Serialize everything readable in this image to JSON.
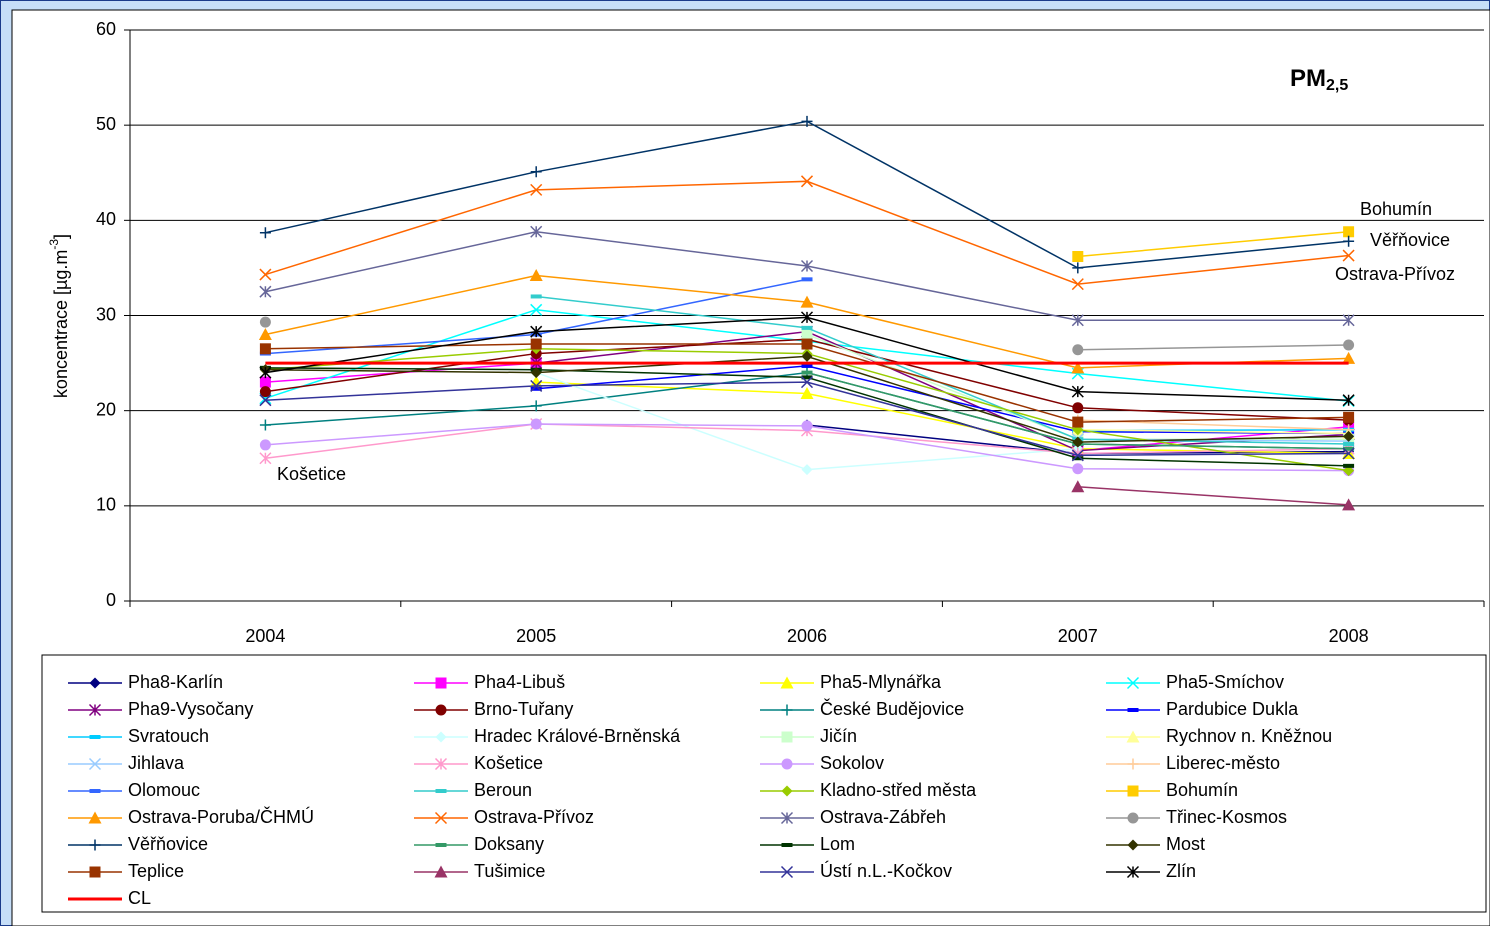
{
  "chart_data": {
    "type": "line",
    "title": {
      "main": "PM",
      "sub": "2,5"
    },
    "ylabel": [
      "koncentrace [µg.m",
      "-3",
      "]"
    ],
    "categories": [
      "2004",
      "2005",
      "2006",
      "2007",
      "2008"
    ],
    "ylim": [
      0,
      60
    ],
    "yticks": [
      0,
      10,
      20,
      30,
      40,
      50,
      60
    ],
    "grid": true,
    "annotations": [
      "Bohumín",
      "Věřňovice",
      "Ostrava-Přívoz",
      "Košetice"
    ],
    "series": [
      {
        "name": "Pha8-Karlín",
        "color": "#000080",
        "marker": "diamond",
        "values": [
          null,
          null,
          18.5,
          15.5,
          15.7
        ]
      },
      {
        "name": "Pha4-Libuš",
        "color": "#ff00ff",
        "marker": "square",
        "values": [
          23,
          25,
          null,
          15.8,
          18.3
        ]
      },
      {
        "name": "Pha5-Mlynářka",
        "color": "#ffff00",
        "marker": "triangle",
        "values": [
          null,
          23,
          21.8,
          16,
          15.5
        ]
      },
      {
        "name": "Pha5-Smíchov",
        "color": "#00ffff",
        "marker": "x",
        "values": [
          21.3,
          30.6,
          27.3,
          23.9,
          21
        ]
      },
      {
        "name": "Pha9-Vysočany",
        "color": "#800080",
        "marker": "star",
        "values": [
          null,
          25,
          28.3,
          15.8,
          17.5
        ]
      },
      {
        "name": "Brno-Tuřany",
        "color": "#800000",
        "marker": "circle",
        "values": [
          22,
          26,
          27.5,
          20.3,
          19
        ]
      },
      {
        "name": "České Budějovice",
        "color": "#008080",
        "marker": "plus",
        "values": [
          18.5,
          20.5,
          24,
          16.5,
          16
        ]
      },
      {
        "name": "Pardubice Dukla",
        "color": "#0000ff",
        "marker": "dash",
        "values": [
          null,
          22.3,
          24.7,
          17.8,
          17.6
        ]
      },
      {
        "name": "Svratouch",
        "color": "#00ccff",
        "marker": "dash",
        "values": [
          null,
          null,
          null,
          17.9,
          18
        ]
      },
      {
        "name": "Hradec Králové-Brněnská",
        "color": "#ccffff",
        "marker": "diamond",
        "values": [
          null,
          24,
          13.8,
          16,
          null
        ]
      },
      {
        "name": "Jičín",
        "color": "#ccffcc",
        "marker": "square",
        "values": [
          null,
          null,
          28,
          17,
          17
        ]
      },
      {
        "name": "Rychnov n. Kněžnou",
        "color": "#ffff99",
        "marker": "triangle",
        "values": [
          null,
          null,
          null,
          18,
          17.6
        ]
      },
      {
        "name": "Jihlava",
        "color": "#99ccff",
        "marker": "x",
        "values": [
          null,
          null,
          null,
          17,
          16.8
        ]
      },
      {
        "name": "Košetice",
        "color": "#ff99cc",
        "marker": "star",
        "values": [
          15,
          18.6,
          17.9,
          15.5,
          16
        ]
      },
      {
        "name": "Sokolov",
        "color": "#cc99ff",
        "marker": "circle",
        "values": [
          16.4,
          18.6,
          18.4,
          13.9,
          13.7
        ]
      },
      {
        "name": "Liberec-město",
        "color": "#ffcc99",
        "marker": "plus",
        "values": [
          null,
          null,
          null,
          19,
          18
        ]
      },
      {
        "name": "Olomouc",
        "color": "#3366ff",
        "marker": "dash",
        "values": [
          26,
          28,
          33.8,
          null,
          null
        ]
      },
      {
        "name": "Beroun",
        "color": "#33cccc",
        "marker": "dash",
        "values": [
          null,
          32,
          28.7,
          17,
          16.5
        ]
      },
      {
        "name": "Kladno-střed města",
        "color": "#99cc00",
        "marker": "diamond",
        "values": [
          24.3,
          26.5,
          26,
          18,
          13.7
        ]
      },
      {
        "name": "Bohumín",
        "color": "#ffcc00",
        "marker": "square",
        "values": [
          null,
          null,
          null,
          36.2,
          38.8
        ]
      },
      {
        "name": "Ostrava-Poruba/ČHMÚ",
        "color": "#ff9900",
        "marker": "triangle",
        "values": [
          28,
          34.2,
          31.4,
          24.5,
          25.5
        ]
      },
      {
        "name": "Ostrava-Přívoz",
        "color": "#ff6600",
        "marker": "x",
        "values": [
          34.3,
          43.2,
          44.1,
          33.3,
          36.3
        ]
      },
      {
        "name": "Ostrava-Zábřeh",
        "color": "#666699",
        "marker": "star",
        "values": [
          32.5,
          38.8,
          35.2,
          29.5,
          29.5
        ]
      },
      {
        "name": "Třinec-Kosmos",
        "color": "#969696",
        "marker": "circle",
        "values": [
          29.3,
          null,
          null,
          26.4,
          26.9
        ]
      },
      {
        "name": "Věřňovice",
        "color": "#003366",
        "marker": "plus",
        "values": [
          38.7,
          45.1,
          50.4,
          35,
          37.8
        ]
      },
      {
        "name": "Doksany",
        "color": "#339966",
        "marker": "dash",
        "values": [
          null,
          null,
          24,
          16.5,
          16
        ]
      },
      {
        "name": "Lom",
        "color": "#003300",
        "marker": "dash",
        "values": [
          24.5,
          24.3,
          23.5,
          15,
          14.2
        ]
      },
      {
        "name": "Most",
        "color": "#333300",
        "marker": "diamond",
        "values": [
          24.3,
          24,
          25.7,
          16.7,
          17.3
        ]
      },
      {
        "name": "Teplice",
        "color": "#993300",
        "marker": "square",
        "values": [
          26.5,
          27,
          27,
          18.8,
          19.3
        ]
      },
      {
        "name": "Tušimice",
        "color": "#993366",
        "marker": "triangle",
        "values": [
          null,
          null,
          null,
          12,
          10.1
        ]
      },
      {
        "name": "Ústí n.L.-Kočkov",
        "color": "#333399",
        "marker": "x",
        "values": [
          21.1,
          22.6,
          23,
          15.3,
          15.5
        ]
      },
      {
        "name": "Zlín",
        "color": "#000000",
        "marker": "star",
        "values": [
          24,
          28.3,
          29.8,
          22,
          21.1
        ]
      },
      {
        "name": "CL",
        "color": "#ff0000",
        "marker": "none",
        "width": 3,
        "values": [
          25,
          25,
          25,
          25,
          25
        ]
      }
    ]
  }
}
